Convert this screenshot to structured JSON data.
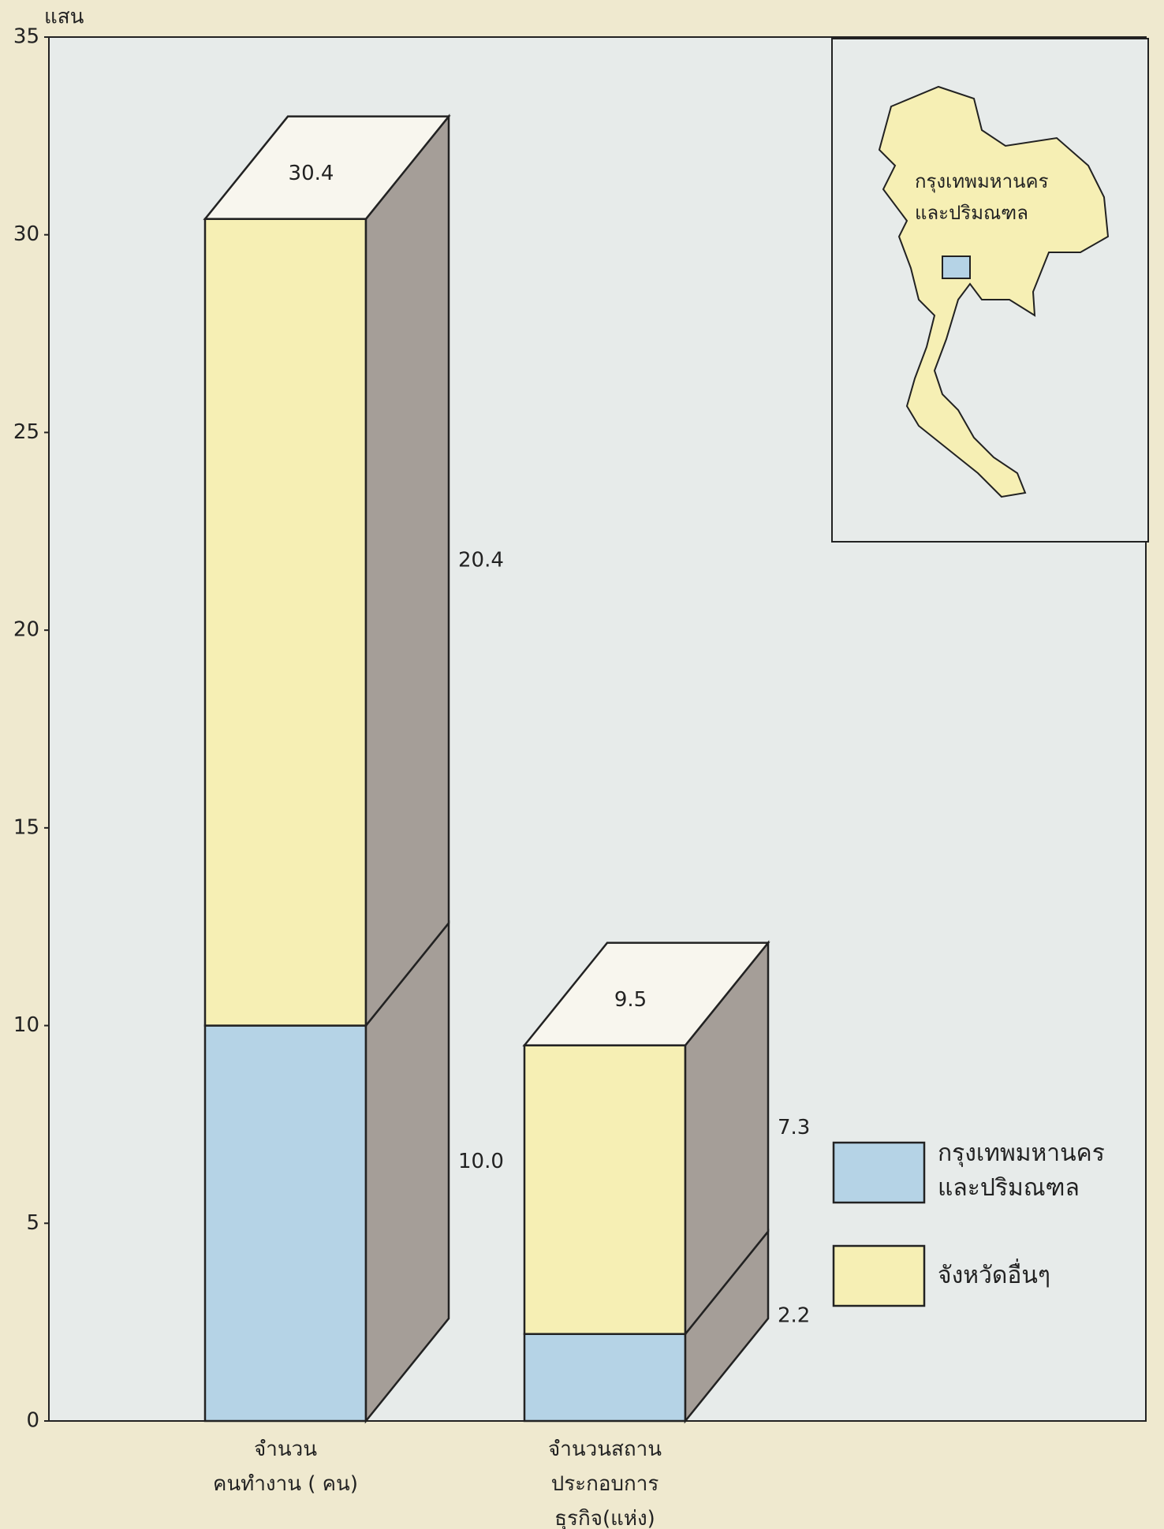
{
  "chart_data": {
    "type": "bar3d_stacked",
    "y_unit_label": "แสน",
    "categories": [
      "จำนวน\nคนทำงาน ( คน)",
      "จำนวนสถาน\nประกอบการ\nธุรกิจ(แห่ง)"
    ],
    "series": [
      {
        "name": "กรุงเทพมหานคร\nและปริมณฑล",
        "color": "#b5d3e6",
        "values": [
          10.0,
          2.2
        ],
        "value_labels": [
          "10.0",
          "2.2"
        ]
      },
      {
        "name": "จังหวัดอื่นๆ",
        "color": "#f6efb4",
        "values": [
          20.4,
          7.3
        ],
        "value_labels": [
          "20.4",
          "7.3"
        ]
      }
    ],
    "totals": [
      30.4,
      9.5
    ],
    "map_label": "กรุงเทพมหานคร\nและปริมณฑล",
    "ylim": [
      0,
      35
    ],
    "yticks": [
      0,
      5,
      10,
      15,
      20,
      25,
      30,
      35
    ]
  }
}
